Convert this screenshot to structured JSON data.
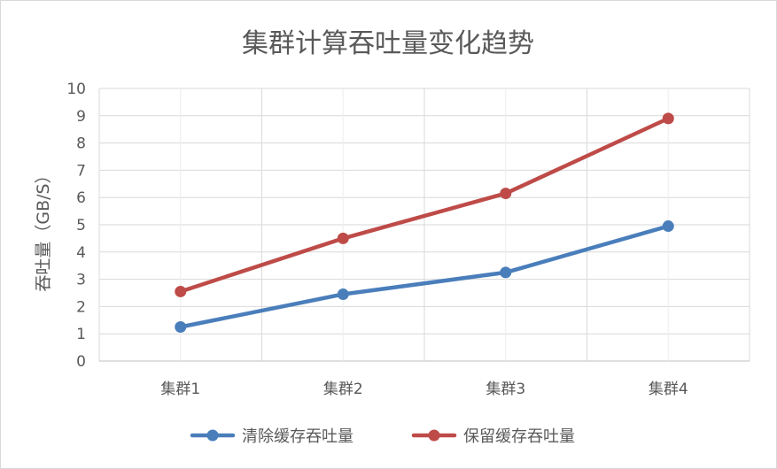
{
  "chart_data": {
    "type": "line",
    "title": "集群计算吞吐量变化趋势",
    "xlabel": "",
    "ylabel": "吞吐量（GB/S）",
    "categories": [
      "集群1",
      "集群2",
      "集群3",
      "集群4"
    ],
    "ylim": [
      0,
      10
    ],
    "yticks": [
      "0",
      "1",
      "2",
      "3",
      "4",
      "5",
      "6",
      "7",
      "8",
      "9",
      "10"
    ],
    "grid": true,
    "legend": "bottom",
    "series": [
      {
        "name": "清除缓存吞吐量",
        "color": "#4a7ebb",
        "values": [
          1.25,
          2.45,
          3.25,
          4.95
        ]
      },
      {
        "name": "保留缓存吞吐量",
        "color": "#be4b48",
        "values": [
          2.55,
          4.5,
          6.15,
          8.9
        ]
      }
    ]
  }
}
